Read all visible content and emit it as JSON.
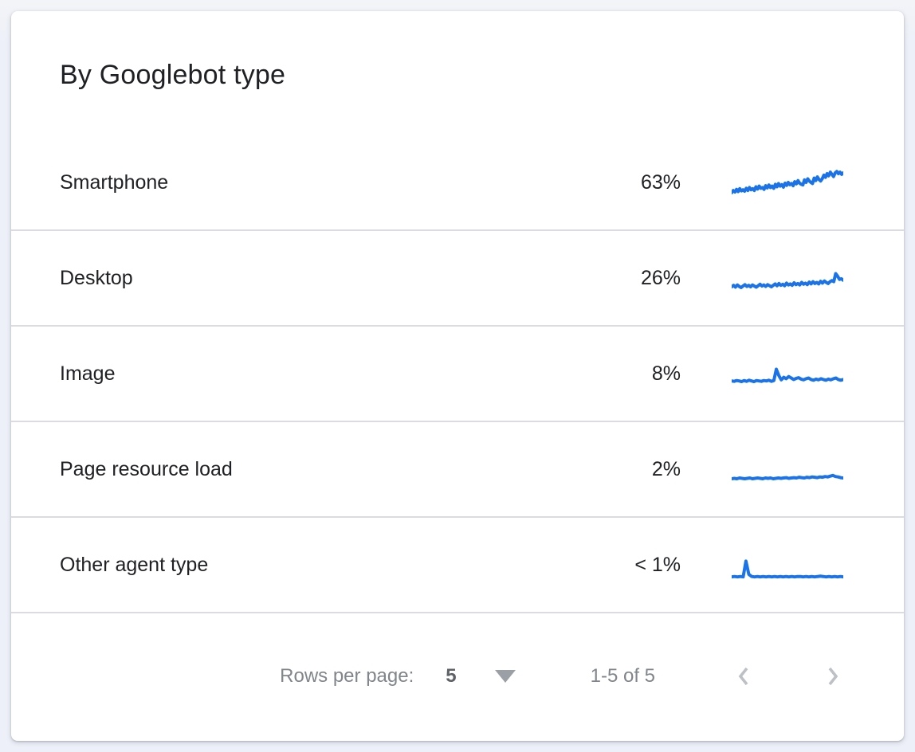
{
  "card": {
    "title": "By Googlebot type",
    "rows": [
      {
        "label": "Smartphone",
        "percent": "63%"
      },
      {
        "label": "Desktop",
        "percent": "26%"
      },
      {
        "label": "Image",
        "percent": "8%"
      },
      {
        "label": "Page resource load",
        "percent": "2%"
      },
      {
        "label": "Other agent type",
        "percent": "< 1%"
      }
    ],
    "footer": {
      "rows_per_page_label": "Rows per page:",
      "rows_per_page_value": "5",
      "range_label": "1-5 of 5"
    }
  },
  "colors": {
    "accent": "#1a73e8",
    "divider": "#dadce0",
    "text": "#202124",
    "muted": "#80868b",
    "chevron": "#bdc1c6",
    "card_bg": "#ffffff",
    "page_bg": "#edf0f9"
  },
  "chart_data": {
    "type": "line",
    "title": "",
    "xlabel": "",
    "ylabel": "",
    "ylim": [
      0,
      100
    ],
    "grid": false,
    "legend_position": "none",
    "note": "Unlabeled sparkline trends of crawl request share per Googlebot type; values are relative estimates 0-100",
    "series": [
      {
        "name": "Smartphone",
        "values": [
          22,
          28,
          24,
          31,
          25,
          33,
          27,
          30,
          26,
          34,
          28,
          36,
          30,
          33,
          28,
          38,
          32,
          40,
          34,
          36,
          31,
          41,
          35,
          43,
          36,
          40,
          34,
          45,
          38,
          47,
          40,
          44,
          37,
          48,
          42,
          50,
          44,
          47,
          41,
          52,
          46,
          55,
          48,
          45,
          43,
          57,
          50,
          60,
          54,
          50,
          47,
          62,
          55,
          65,
          58,
          54,
          60,
          70,
          64,
          74,
          68,
          78,
          72,
          66,
          76,
          80,
          74,
          78,
          72,
          76
        ]
      },
      {
        "name": "Desktop",
        "values": [
          26,
          30,
          25,
          31,
          27,
          24,
          28,
          32,
          27,
          30,
          26,
          31,
          28,
          25,
          29,
          33,
          28,
          31,
          27,
          32,
          29,
          26,
          30,
          34,
          29,
          35,
          30,
          33,
          29,
          36,
          31,
          34,
          30,
          37,
          32,
          35,
          31,
          38,
          33,
          36,
          32,
          39,
          34,
          40,
          35,
          38,
          34,
          41,
          36,
          42,
          38,
          35,
          40,
          43,
          40,
          62,
          55,
          46,
          48,
          44
        ]
      },
      {
        "name": "Image",
        "values": [
          30,
          29,
          31,
          30,
          28,
          31,
          29,
          32,
          30,
          28,
          31,
          30,
          29,
          31,
          30,
          32,
          29,
          31,
          62,
          45,
          33,
          40,
          36,
          42,
          38,
          34,
          37,
          39,
          35,
          33,
          36,
          38,
          34,
          32,
          35,
          33,
          36,
          34,
          32,
          35,
          33,
          36,
          38,
          34,
          32,
          34
        ]
      },
      {
        "name": "Page resource load",
        "values": [
          24,
          25,
          24,
          26,
          25,
          24,
          25,
          26,
          24,
          25,
          26,
          25,
          24,
          26,
          25,
          26,
          24,
          25,
          26,
          25,
          26,
          27,
          25,
          26,
          27,
          26,
          28,
          27,
          26,
          28,
          27,
          29,
          28,
          27,
          29,
          28,
          30,
          29,
          31,
          33,
          30,
          29,
          27,
          26
        ]
      },
      {
        "name": "Other agent type",
        "values": [
          17,
          18,
          17,
          18,
          17,
          60,
          24,
          18,
          17,
          18,
          17,
          18,
          17,
          18,
          17,
          18,
          17,
          18,
          17,
          18,
          17,
          18,
          17,
          18,
          18,
          17,
          18,
          17,
          18,
          17,
          18,
          19,
          18,
          17,
          18,
          17,
          18,
          17,
          18,
          17
        ]
      }
    ]
  }
}
